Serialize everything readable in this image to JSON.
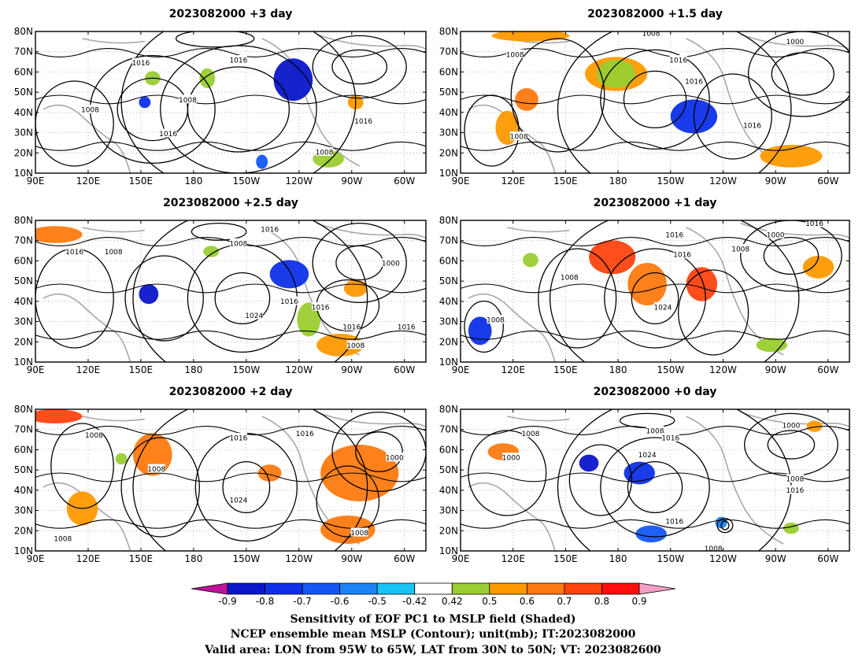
{
  "panels": [
    {
      "title": "2023082000 +3 day",
      "contour_labels": [
        "1016",
        "1016",
        "1008",
        "1008",
        "1016",
        "1016",
        "1008"
      ]
    },
    {
      "title": "2023082000 +1.5 day",
      "contour_labels": [
        "1008",
        "1000",
        "1008",
        "1016",
        "1016",
        "1016",
        "1008"
      ]
    },
    {
      "title": "2023082000 +2.5 day",
      "contour_labels": [
        "1016",
        "1008",
        "1016",
        "1008",
        "1000",
        "1016",
        "1024",
        "1016",
        "1016",
        "1016",
        "1008"
      ]
    },
    {
      "title": "2023082000 +1 day",
      "contour_labels": [
        "1016",
        "1000",
        "1016",
        "1008",
        "1008",
        "1016",
        "1024",
        "1008"
      ]
    },
    {
      "title": "2023082000 +2 day",
      "contour_labels": [
        "1008",
        "1016",
        "1016",
        "1000",
        "1008",
        "1024",
        "1008",
        "1008"
      ]
    },
    {
      "title": "2023082000 +0 day",
      "contour_labels": [
        "1008",
        "1008",
        "1016",
        "1000",
        "1000",
        "1024",
        "1008",
        "1016",
        "1016",
        "1008"
      ]
    }
  ],
  "lat_labels": [
    "80N",
    "70N",
    "60N",
    "50N",
    "40N",
    "30N",
    "20N",
    "10N"
  ],
  "lon_labels": [
    "90E",
    "120E",
    "150E",
    "180",
    "150W",
    "120W",
    "90W",
    "60W"
  ],
  "colorbar": {
    "ticks": [
      "-0.9",
      "-0.8",
      "-0.7",
      "-0.6",
      "-0.5",
      "-0.42",
      "0.42",
      "0.5",
      "0.6",
      "0.7",
      "0.8",
      "0.9"
    ],
    "colors": [
      "#c0129d",
      "#0a16c9",
      "#0d30e8",
      "#1457f5",
      "#1b83f5",
      "#1ac3f5",
      "#ffffff",
      "#9acd32",
      "#ff9a00",
      "#ff7a10",
      "#ff4410",
      "#ff0d0d",
      "#f5a0c8"
    ]
  },
  "footer": [
    "Sensitivity of EOF PC1 to MSLP field (Shaded)",
    "NCEP ensemble mean MSLP (Contour); unit(mb); IT:2023082000",
    "Valid area: LON from 95W to 65W, LAT from 30N to 50N; VT: 2023082600"
  ]
}
